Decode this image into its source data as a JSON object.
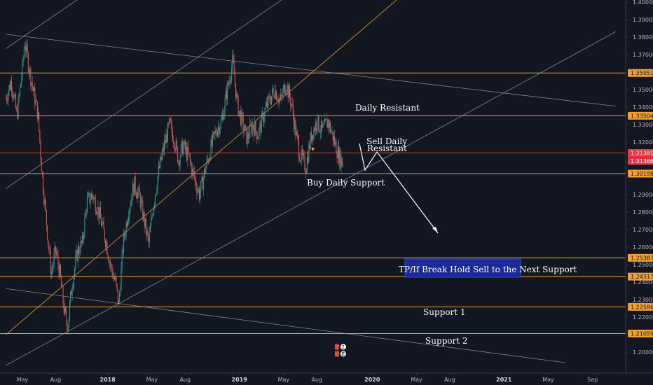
{
  "chart_data": {
    "type": "candlestick",
    "instrument_note": "",
    "y_range": [
      1.195,
      1.4
    ],
    "x_axis": {
      "ticks": [
        {
          "label": "May",
          "t": 0.0,
          "bold": false
        },
        {
          "label": "Aug",
          "t": 3.0,
          "bold": false
        },
        {
          "label": "2018",
          "t": 7.7,
          "bold": true
        },
        {
          "label": "May",
          "t": 11.7,
          "bold": false
        },
        {
          "label": "Aug",
          "t": 14.7,
          "bold": false
        },
        {
          "label": "2019",
          "t": 19.6,
          "bold": true
        },
        {
          "label": "May",
          "t": 23.6,
          "bold": false
        },
        {
          "label": "Aug",
          "t": 26.6,
          "bold": false
        },
        {
          "label": "2020",
          "t": 31.6,
          "bold": true
        },
        {
          "label": "May",
          "t": 35.6,
          "bold": false
        },
        {
          "label": "Aug",
          "t": 38.6,
          "bold": false
        },
        {
          "label": "2021",
          "t": 43.5,
          "bold": true
        },
        {
          "label": "May",
          "t": 47.5,
          "bold": false
        },
        {
          "label": "Sep",
          "t": 51.5,
          "bold": false
        }
      ]
    },
    "y_axis": {
      "ticks": [
        "1.40000",
        "1.39000",
        "1.38000",
        "1.37000",
        "1.35000",
        "1.34000",
        "1.33000",
        "1.32000",
        "1.29000",
        "1.28000",
        "1.27000",
        "1.26000",
        "1.25000",
        "1.24000",
        "1.23000",
        "1.22000",
        "1.20000"
      ]
    },
    "price_labels": [
      {
        "value": 1.35951,
        "text": "1.35951",
        "style": "orange"
      },
      {
        "value": 1.33504,
        "text": "1.33504",
        "style": "orange"
      },
      {
        "value": 1.31381,
        "text": "1.31381",
        "style": "red"
      },
      {
        "value": 1.31366,
        "text": "1.31366",
        "style": "red"
      },
      {
        "value": 1.30198,
        "text": "1.30198",
        "style": "orange"
      },
      {
        "value": 1.25387,
        "text": "1.25387",
        "style": "orange"
      },
      {
        "value": 1.24317,
        "text": "1.24317",
        "style": "orange"
      },
      {
        "value": 1.22586,
        "text": "1.22586",
        "style": "orange"
      },
      {
        "value": 1.21059,
        "text": "1.21059",
        "style": "orange"
      }
    ],
    "horizontal_levels": [
      1.35951,
      1.33504,
      1.31381,
      1.30198,
      1.25387,
      1.24317,
      1.22586,
      1.21059
    ],
    "trend_lines": [
      {
        "color": "#9598a1",
        "points": [
          [
            -1.5,
            1.3734
          ],
          [
            6.5,
            1.408
          ]
        ]
      },
      {
        "color": "#9598a1",
        "points": [
          [
            -1.5,
            1.2934
          ],
          [
            55.0,
            1.538
          ]
        ]
      },
      {
        "color": "#9598a1",
        "points": [
          [
            -1.5,
            1.1924
          ],
          [
            53.6,
            1.3831
          ]
        ]
      },
      {
        "color": "#9598a1",
        "points": [
          [
            -1.5,
            1.3816
          ],
          [
            53.6,
            1.3405
          ]
        ]
      },
      {
        "color": "#9598a1",
        "points": [
          [
            -1.5,
            1.2363
          ],
          [
            49.0,
            1.194
          ]
        ]
      },
      {
        "color": "#f0a030",
        "points": [
          [
            -1.5,
            1.2099
          ],
          [
            34.5,
            1.405
          ]
        ]
      }
    ],
    "price_path": [
      [
        -1.5,
        1.345
      ],
      [
        -1.0,
        1.355
      ],
      [
        -0.5,
        1.335
      ],
      [
        0.0,
        1.362
      ],
      [
        0.2,
        1.378
      ],
      [
        0.5,
        1.366
      ],
      [
        0.9,
        1.352
      ],
      [
        1.4,
        1.336
      ],
      [
        1.8,
        1.3
      ],
      [
        2.2,
        1.272
      ],
      [
        2.6,
        1.245
      ],
      [
        3.0,
        1.258
      ],
      [
        3.4,
        1.244
      ],
      [
        3.8,
        1.222
      ],
      [
        4.1,
        1.215
      ],
      [
        4.5,
        1.24
      ],
      [
        5.0,
        1.258
      ],
      [
        5.4,
        1.262
      ],
      [
        5.8,
        1.285
      ],
      [
        6.3,
        1.29
      ],
      [
        6.8,
        1.282
      ],
      [
        7.2,
        1.272
      ],
      [
        7.6,
        1.262
      ],
      [
        8.0,
        1.248
      ],
      [
        8.4,
        1.24
      ],
      [
        8.7,
        1.227
      ],
      [
        9.1,
        1.262
      ],
      [
        9.6,
        1.282
      ],
      [
        10.1,
        1.296
      ],
      [
        10.6,
        1.288
      ],
      [
        11.0,
        1.275
      ],
      [
        11.4,
        1.262
      ],
      [
        11.8,
        1.283
      ],
      [
        12.3,
        1.303
      ],
      [
        12.8,
        1.318
      ],
      [
        13.3,
        1.33
      ],
      [
        13.7,
        1.322
      ],
      [
        14.1,
        1.31
      ],
      [
        14.5,
        1.318
      ],
      [
        15.0,
        1.312
      ],
      [
        15.5,
        1.3
      ],
      [
        16.0,
        1.29
      ],
      [
        16.5,
        1.304
      ],
      [
        17.0,
        1.316
      ],
      [
        17.5,
        1.327
      ],
      [
        18.0,
        1.332
      ],
      [
        18.5,
        1.35
      ],
      [
        19.0,
        1.366
      ],
      [
        19.4,
        1.342
      ],
      [
        19.9,
        1.33
      ],
      [
        20.3,
        1.322
      ],
      [
        20.8,
        1.33
      ],
      [
        21.3,
        1.324
      ],
      [
        21.8,
        1.336
      ],
      [
        22.3,
        1.344
      ],
      [
        22.8,
        1.35
      ],
      [
        23.3,
        1.343
      ],
      [
        23.8,
        1.354
      ],
      [
        24.3,
        1.342
      ],
      [
        24.7,
        1.325
      ],
      [
        25.1,
        1.312
      ],
      [
        25.6,
        1.306
      ],
      [
        26.1,
        1.324
      ],
      [
        26.6,
        1.332
      ],
      [
        27.1,
        1.326
      ],
      [
        27.6,
        1.332
      ],
      [
        28.1,
        1.322
      ],
      [
        28.6,
        1.312
      ],
      [
        29.0,
        1.307
      ]
    ],
    "annotations": {
      "daily_resistant": "Daily Resistant",
      "sell_daily": "Sell Daily",
      "resistant": "Resistant",
      "buy_daily": "Buy Daily",
      "support": "Support",
      "tp_box": "TP/If Break Hold Sell to the Next Support",
      "support1": "Support 1",
      "support2": "Support 2"
    },
    "event_badges": [
      {
        "label": "2",
        "t": 28.6,
        "y": 1.203
      },
      {
        "label": "E",
        "t": 28.6,
        "y": 1.199
      }
    ]
  }
}
